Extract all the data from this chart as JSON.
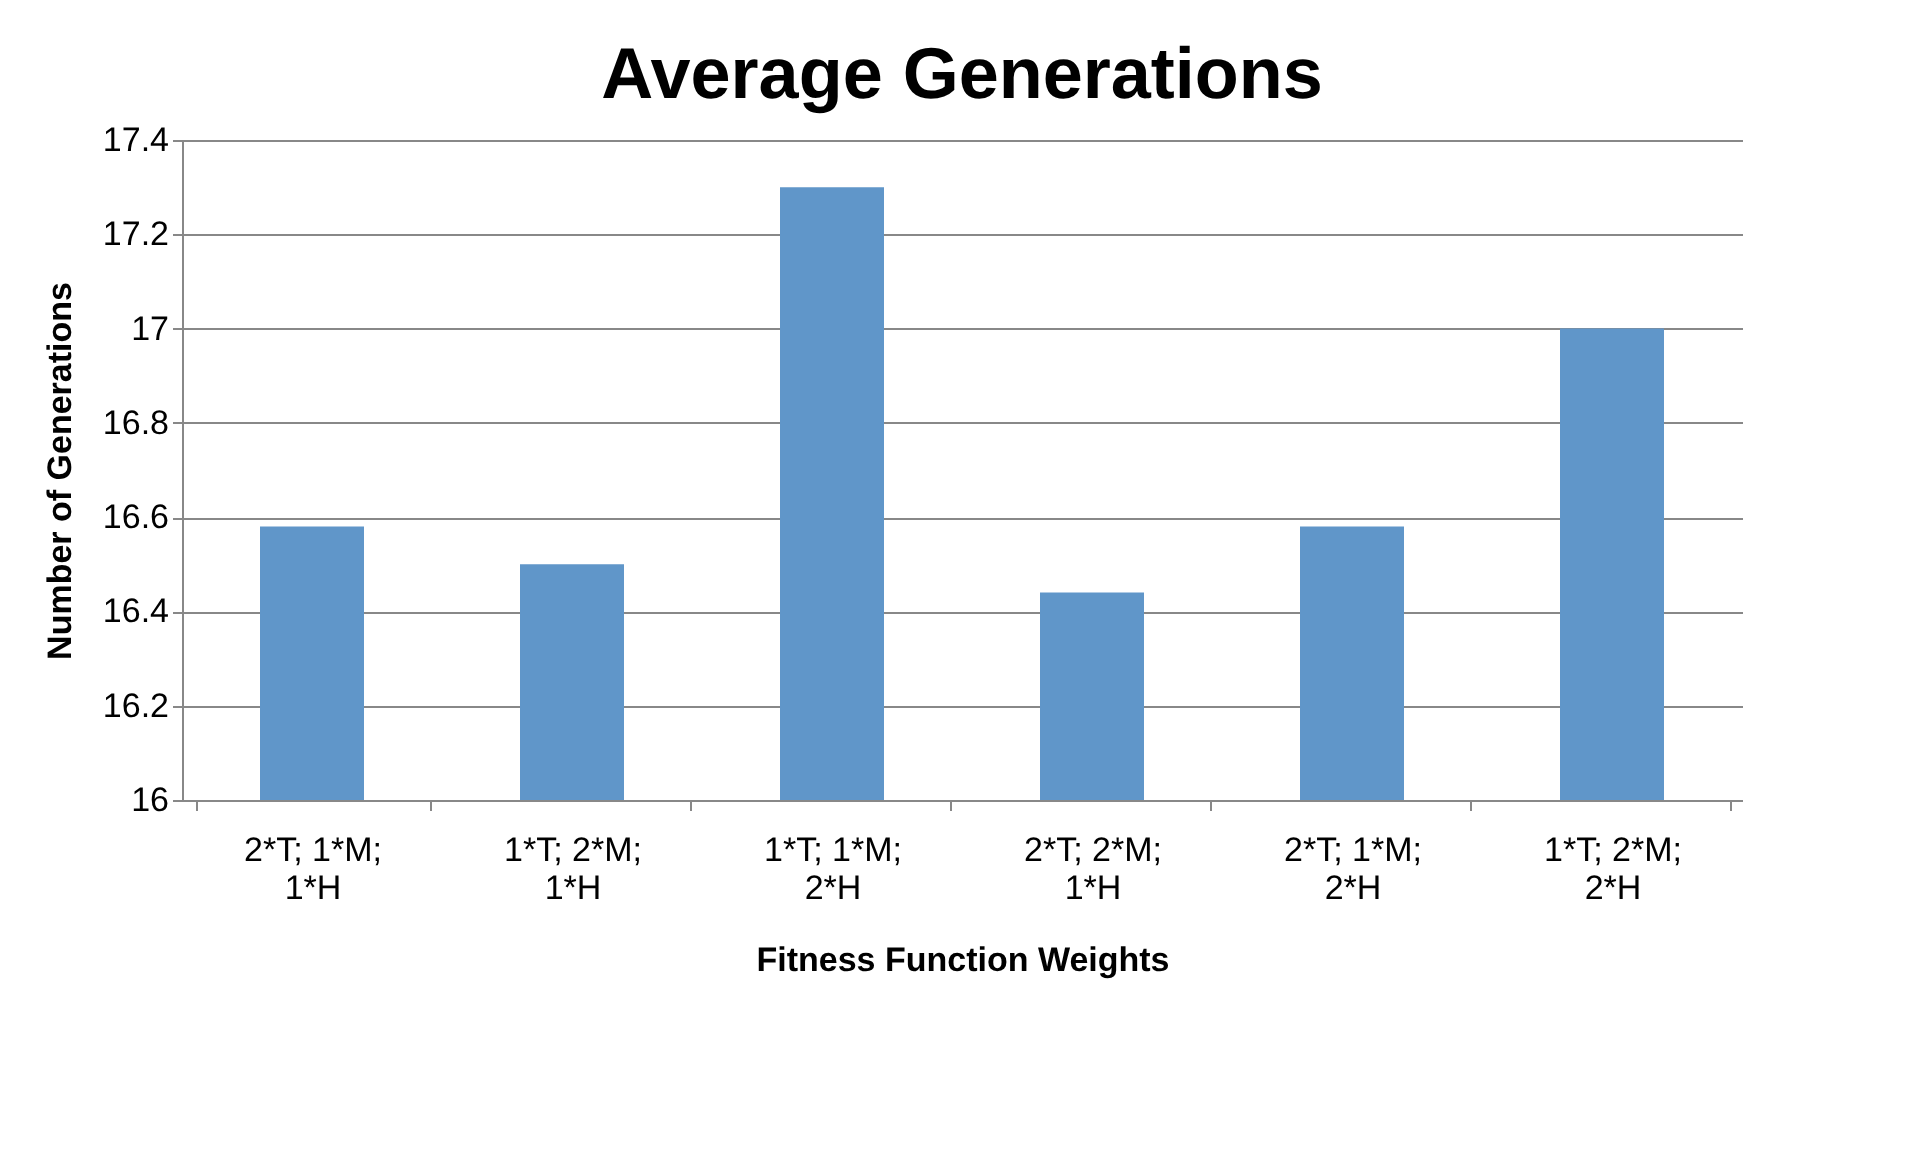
{
  "chart_data": {
    "type": "bar",
    "title": "Average Generations",
    "xlabel": "Fitness Function Weights",
    "ylabel": "Number of Generations",
    "categories": [
      "2*T; 1*M; 1*H",
      "1*T; 2*M; 1*H",
      "1*T; 1*M; 2*H",
      "2*T; 2*M; 1*H",
      "2*T; 1*M; 2*H",
      "1*T; 2*M; 2*H"
    ],
    "values": [
      16.58,
      16.5,
      17.3,
      16.44,
      16.58,
      17.0
    ],
    "color": "#6096c9",
    "ylim": [
      16,
      17.4
    ],
    "yticks": [
      16,
      16.2,
      16.4,
      16.6,
      16.8,
      17,
      17.2,
      17.4
    ],
    "grid": "y"
  }
}
